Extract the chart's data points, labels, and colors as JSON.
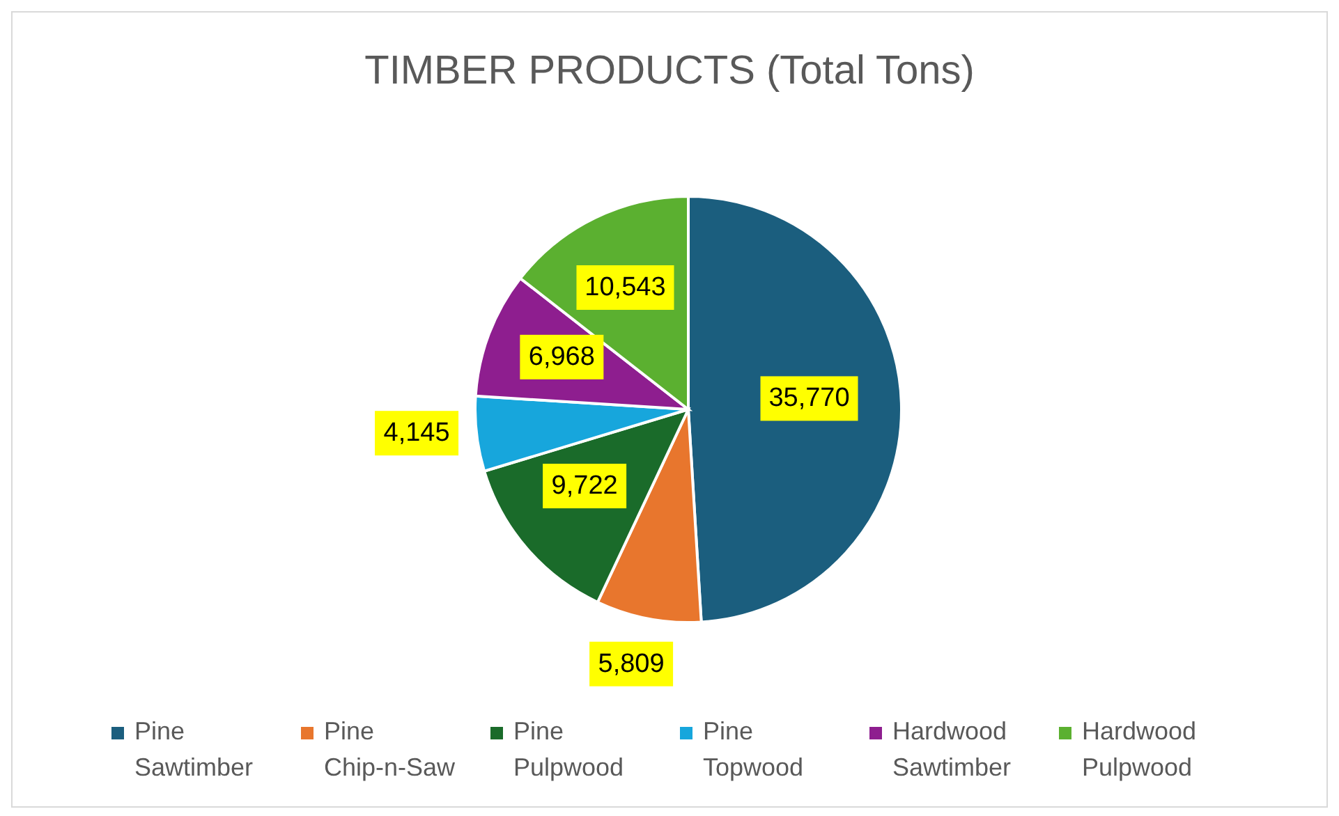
{
  "chart_data": {
    "type": "pie",
    "title": "TIMBER PRODUCTS (Total Tons)",
    "categories": [
      "Pine Sawtimber",
      "Pine Chip-n-Saw",
      "Pine Pulpwood",
      "Pine Topwood",
      "Hardwood Sawtimber",
      "Hardwood Pulpwood"
    ],
    "values": [
      35770,
      5809,
      9722,
      4145,
      6968,
      10543
    ],
    "colors": [
      "#1b5e7e",
      "#e8762d",
      "#1a6b2a",
      "#17a6dc",
      "#8e1e8f",
      "#5bb030"
    ],
    "value_labels": [
      "35,770",
      "5,809",
      "9,722",
      "4,145",
      "6,968",
      "10,543"
    ],
    "legend": "bottom"
  }
}
